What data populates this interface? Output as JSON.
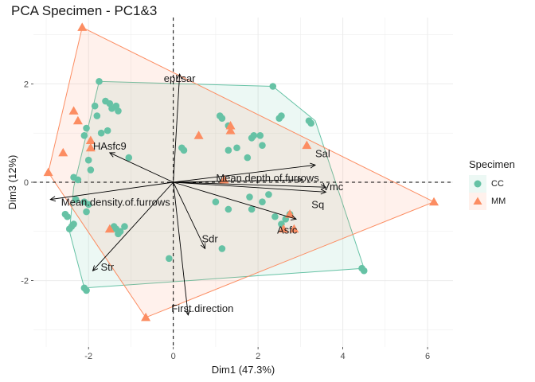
{
  "chart_data": {
    "type": "scatter",
    "title": "PCA Specimen - PC1&3",
    "xlabel": "Dim1 (47.3%)",
    "ylabel": "Dim3 (12%)",
    "xlim": [
      -3.3,
      6.6
    ],
    "ylim": [
      -3.35,
      3.35
    ],
    "x_ticks": [
      -2,
      0,
      2,
      4,
      6
    ],
    "x_tick_labels": [
      "-2",
      "0",
      "2",
      "4",
      "6"
    ],
    "y_ticks": [
      -2,
      0,
      2
    ],
    "y_tick_labels": [
      "-2",
      "0",
      "2"
    ],
    "grid": true,
    "legend_position": "right",
    "legend_title": "Specimen",
    "series": [
      {
        "name": "CC",
        "color": "#66c2a5",
        "marker": "circle",
        "hull": [
          [
            -1.75,
            2.05
          ],
          [
            2.35,
            1.95
          ],
          [
            3.35,
            1.25
          ],
          [
            4.5,
            -1.75
          ],
          [
            -2.1,
            -2.15
          ],
          [
            -2.45,
            -1.0
          ],
          [
            -2.35,
            -0.1
          ]
        ],
        "points": [
          [
            -1.75,
            2.05
          ],
          [
            -1.6,
            1.65
          ],
          [
            -1.5,
            1.6
          ],
          [
            -1.45,
            1.5
          ],
          [
            -1.35,
            1.55
          ],
          [
            -1.3,
            1.45
          ],
          [
            -1.85,
            1.55
          ],
          [
            -1.8,
            1.35
          ],
          [
            -1.7,
            1.0
          ],
          [
            -1.55,
            1.05
          ],
          [
            -2.05,
            1.1
          ],
          [
            -2.1,
            0.95
          ],
          [
            -1.05,
            0.5
          ],
          [
            -2.0,
            0.45
          ],
          [
            -1.95,
            0.25
          ],
          [
            0.25,
            0.65
          ],
          [
            0.2,
            0.7
          ],
          [
            -2.25,
            0.05
          ],
          [
            -2.35,
            0.1
          ],
          [
            -2.3,
            -0.35
          ],
          [
            -2.1,
            -0.4
          ],
          [
            -2.0,
            -0.45
          ],
          [
            -2.05,
            -0.6
          ],
          [
            -2.55,
            -0.65
          ],
          [
            -2.5,
            -0.7
          ],
          [
            -2.4,
            -0.9
          ],
          [
            -2.45,
            -0.95
          ],
          [
            -2.35,
            -0.85
          ],
          [
            -1.4,
            -0.9
          ],
          [
            -1.35,
            -0.95
          ],
          [
            -1.15,
            -0.9
          ],
          [
            -1.25,
            -1.0
          ],
          [
            -1.3,
            -1.05
          ],
          [
            1.15,
            1.3
          ],
          [
            1.1,
            1.35
          ],
          [
            1.3,
            1.15
          ],
          [
            1.5,
            0.7
          ],
          [
            1.3,
            0.65
          ],
          [
            1.75,
            0.5
          ],
          [
            1.85,
            0.9
          ],
          [
            1.9,
            0.95
          ],
          [
            2.05,
            0.95
          ],
          [
            2.1,
            0.75
          ],
          [
            2.5,
            1.3
          ],
          [
            2.55,
            1.35
          ],
          [
            3.2,
            1.25
          ],
          [
            3.25,
            1.2
          ],
          [
            2.35,
            1.95
          ],
          [
            1.8,
            -0.3
          ],
          [
            2.1,
            -0.4
          ],
          [
            1.3,
            -0.55
          ],
          [
            1.85,
            -0.55
          ],
          [
            2.25,
            -0.25
          ],
          [
            2.4,
            -0.7
          ],
          [
            2.75,
            -0.65
          ],
          [
            2.65,
            -0.75
          ],
          [
            2.55,
            -0.85
          ],
          [
            1.0,
            -0.4
          ],
          [
            1.15,
            -1.35
          ],
          [
            -0.1,
            -1.55
          ],
          [
            -2.1,
            -2.15
          ],
          [
            -2.05,
            -2.2
          ],
          [
            4.45,
            -1.75
          ],
          [
            4.5,
            -1.8
          ]
        ]
      },
      {
        "name": "MM",
        "color": "#fc8d62",
        "marker": "triangle",
        "hull": [
          [
            -2.15,
            3.15
          ],
          [
            6.15,
            -0.4
          ],
          [
            -0.65,
            -2.75
          ],
          [
            -2.95,
            0.2
          ]
        ],
        "points": [
          [
            -2.15,
            3.15
          ],
          [
            -2.35,
            1.45
          ],
          [
            -2.25,
            1.25
          ],
          [
            -1.95,
            0.85
          ],
          [
            -1.95,
            0.7
          ],
          [
            -2.6,
            0.6
          ],
          [
            -2.95,
            0.2
          ],
          [
            0.6,
            0.95
          ],
          [
            1.35,
            1.15
          ],
          [
            1.35,
            1.05
          ],
          [
            3.15,
            0.75
          ],
          [
            1.2,
            0.05
          ],
          [
            2.6,
            -0.95
          ],
          [
            2.75,
            -0.65
          ],
          [
            2.85,
            -0.95
          ],
          [
            -1.5,
            -0.95
          ],
          [
            -0.65,
            -2.75
          ],
          [
            6.15,
            -0.4
          ]
        ]
      }
    ],
    "variables": [
      {
        "name": "epLsar",
        "x": 0.15,
        "y": 2.2
      },
      {
        "name": "HAsfc9",
        "x": -1.5,
        "y": 0.6
      },
      {
        "name": "Sal",
        "x": 3.35,
        "y": 0.35
      },
      {
        "name": "Mean.depth.of.furrows",
        "x": 3.05,
        "y": 0.05
      },
      {
        "name": "Vmc",
        "x": 3.6,
        "y": -0.1
      },
      {
        "name": "Sq",
        "x": 3.6,
        "y": -0.2
      },
      {
        "name": "Asfc",
        "x": 2.9,
        "y": -0.75
      },
      {
        "name": "Sdr",
        "x": 0.75,
        "y": -1.35
      },
      {
        "name": "Str",
        "x": -1.9,
        "y": -1.8
      },
      {
        "name": "First.direction",
        "x": 0.35,
        "y": -2.7
      },
      {
        "name": "Mean.density.of.furrows",
        "x": -2.9,
        "y": -0.35
      }
    ]
  }
}
